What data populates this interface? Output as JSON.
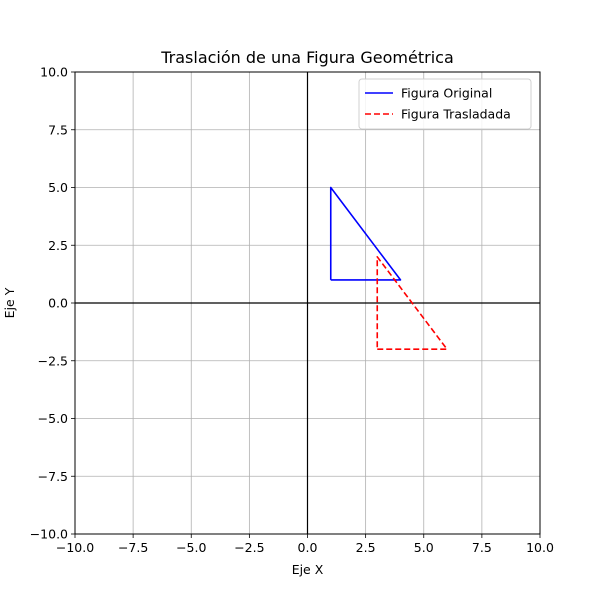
{
  "chart_data": {
    "type": "line",
    "title": "Traslación de una Figura Geométrica",
    "xlabel": "Eje X",
    "ylabel": "Eje Y",
    "xlim": [
      -10,
      10
    ],
    "ylim": [
      -10,
      10
    ],
    "xticks": [
      -10,
      -7.5,
      -5,
      -2.5,
      0,
      2.5,
      5,
      7.5,
      10
    ],
    "yticks": [
      -10,
      -7.5,
      -5,
      -2.5,
      0,
      2.5,
      5,
      7.5,
      10
    ],
    "xtick_labels": [
      "−10.0",
      "−7.5",
      "−5.0",
      "−2.5",
      "0.0",
      "2.5",
      "5.0",
      "7.5",
      "10.0"
    ],
    "ytick_labels": [
      "−10.0",
      "−7.5",
      "−5.0",
      "−2.5",
      "0.0",
      "2.5",
      "5.0",
      "7.5",
      "10.0"
    ],
    "grid": true,
    "reference_lines": {
      "x": 0,
      "y": 0,
      "color": "#000000"
    },
    "legend_position": "top-right",
    "series": [
      {
        "name": "Figura Original",
        "color": "#0000ff",
        "style": "solid",
        "x": [
          1,
          4,
          1,
          1
        ],
        "y": [
          1,
          1,
          5,
          1
        ]
      },
      {
        "name": "Figura Trasladada",
        "color": "#ff0000",
        "style": "dashed",
        "x": [
          3,
          6,
          3,
          3
        ],
        "y": [
          -2,
          -2,
          2,
          -2
        ]
      }
    ]
  }
}
